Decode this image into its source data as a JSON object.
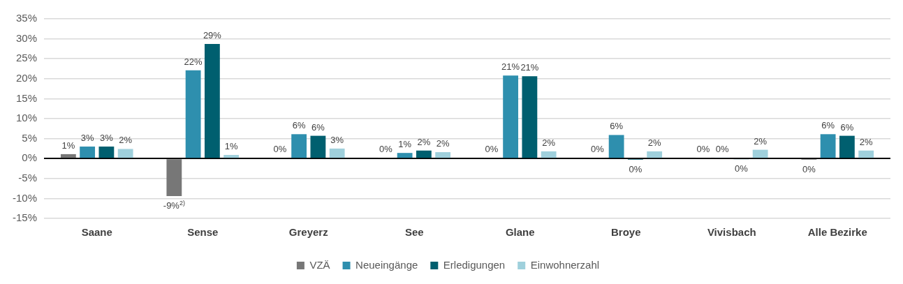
{
  "chart_data": {
    "type": "bar",
    "categories": [
      "Saane",
      "Sense",
      "Greyerz",
      "See",
      "Glane",
      "Broye",
      "Vivisbach",
      "Alle Bezirke"
    ],
    "series": [
      {
        "name": "VZÄ",
        "color": "#777777",
        "values": [
          1.1,
          -9.4,
          0.2,
          0.2,
          0.2,
          0.2,
          0.2,
          -0.3
        ],
        "value_labels": [
          "1%",
          "-9%$^{2)}$",
          "0%",
          "0%",
          "0%",
          "0%",
          "0%",
          "0%"
        ]
      },
      {
        "name": "Neueingänge",
        "color": "#2e8fae",
        "values": [
          3.0,
          22.1,
          6.1,
          1.4,
          20.8,
          5.9,
          0.2,
          6.1
        ],
        "value_labels": [
          "3%",
          "22%",
          "6%",
          "1%",
          "21%",
          "6%",
          "0%",
          "6%"
        ]
      },
      {
        "name": "Erledigungen",
        "color": "#005f6f",
        "values": [
          3.0,
          28.7,
          5.7,
          2.0,
          20.6,
          -0.3,
          -0.2,
          5.7
        ],
        "value_labels": [
          "3%",
          "29%",
          "6%",
          "2%",
          "21%",
          "0%",
          "0%",
          "6%"
        ]
      },
      {
        "name": "Einwohnerzahl",
        "color": "#9fd0dc",
        "values": [
          2.4,
          0.9,
          2.5,
          1.6,
          1.8,
          1.8,
          2.2,
          2.0
        ],
        "value_labels": [
          "2%",
          "1%",
          "3%",
          "2%",
          "2%",
          "2%",
          "2%",
          "2%"
        ]
      }
    ],
    "ylim": [
      -15,
      35
    ],
    "yticks": [
      {
        "value": -15,
        "label": "-15%"
      },
      {
        "value": -10,
        "label": "-10%"
      },
      {
        "value": -5,
        "label": "-5%"
      },
      {
        "value": 0,
        "label": "0%"
      },
      {
        "value": 5,
        "label": "5%"
      },
      {
        "value": 10,
        "label": "10%"
      },
      {
        "value": 15,
        "label": "15%"
      },
      {
        "value": 20,
        "label": "20%"
      },
      {
        "value": 25,
        "label": "25%"
      },
      {
        "value": 30,
        "label": "30%"
      },
      {
        "value": 35,
        "label": "35%"
      }
    ],
    "grid": "y",
    "legend": "bottom"
  }
}
